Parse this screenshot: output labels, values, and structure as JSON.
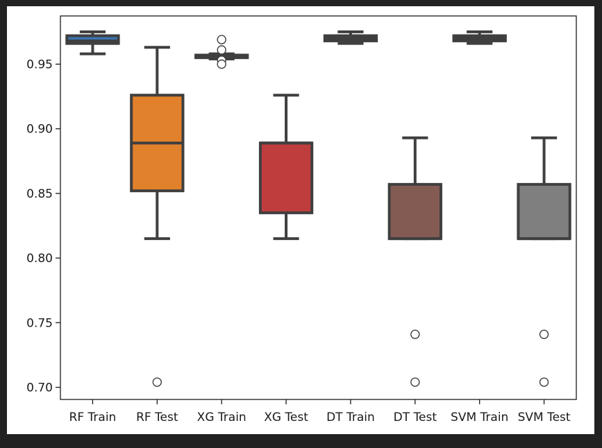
{
  "chart_data": {
    "type": "box",
    "title": "",
    "xlabel": "",
    "ylabel": "",
    "ylim": [
      0.69,
      0.98
    ],
    "yticks": [
      0.7,
      0.75,
      0.8,
      0.85,
      0.9,
      0.95
    ],
    "ytick_labels": [
      "0.70",
      "0.75",
      "0.80",
      "0.85",
      "0.90",
      "0.95"
    ],
    "grid": false,
    "legend": "none",
    "categories": [
      "RF Train",
      "RF Test",
      "XG Train",
      "XG Test",
      "DT Train",
      "DT Test",
      "SVM Train",
      "SVM Test"
    ],
    "boxes": [
      {
        "category": "RF Train",
        "whisker_low": 0.958,
        "q1": 0.966,
        "median": 0.968,
        "q3": 0.972,
        "whisker_high": 0.975,
        "outliers": [],
        "color": "#3a75b0"
      },
      {
        "category": "RF Test",
        "whisker_low": 0.815,
        "q1": 0.852,
        "median": 0.889,
        "q3": 0.926,
        "whisker_high": 0.963,
        "outliers": [
          0.704
        ],
        "color": "#e1812c"
      },
      {
        "category": "XG Train",
        "whisker_low": 0.954,
        "q1": 0.955,
        "median": 0.956,
        "q3": 0.957,
        "whisker_high": 0.958,
        "outliers": [
          0.969,
          0.961,
          0.953,
          0.95
        ],
        "color": "#3a923a"
      },
      {
        "category": "XG Test",
        "whisker_low": 0.815,
        "q1": 0.835,
        "median": 0.889,
        "q3": 0.889,
        "whisker_high": 0.926,
        "outliers": [],
        "color": "#c03d3e"
      },
      {
        "category": "DT Train",
        "whisker_low": 0.966,
        "q1": 0.968,
        "median": 0.97,
        "q3": 0.972,
        "whisker_high": 0.975,
        "outliers": [],
        "color": "#9372b2"
      },
      {
        "category": "DT Test",
        "whisker_low": 0.815,
        "q1": 0.815,
        "median": 0.815,
        "q3": 0.857,
        "whisker_high": 0.893,
        "outliers": [
          0.741,
          0.704
        ],
        "color": "#845b53"
      },
      {
        "category": "SVM Train",
        "whisker_low": 0.966,
        "q1": 0.968,
        "median": 0.97,
        "q3": 0.972,
        "whisker_high": 0.975,
        "outliers": [],
        "color": "#d684bd"
      },
      {
        "category": "SVM Test",
        "whisker_low": 0.815,
        "q1": 0.815,
        "median": 0.815,
        "q3": 0.857,
        "whisker_high": 0.893,
        "outliers": [
          0.741,
          0.704
        ],
        "color": "#7f7f7f"
      }
    ]
  }
}
